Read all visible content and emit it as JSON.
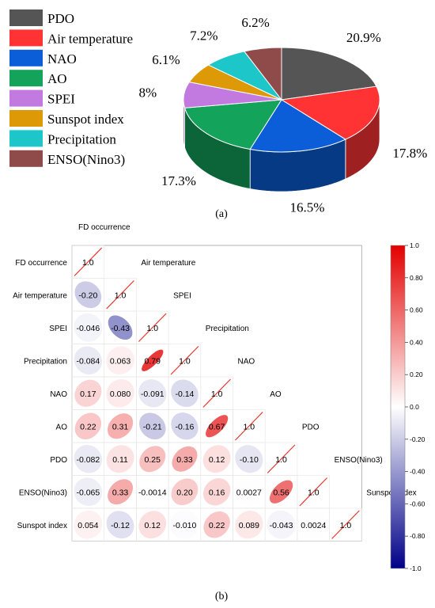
{
  "chart_data": [
    {
      "type": "pie",
      "panel_label": "(a)",
      "style": "3d-pie",
      "legend_placement": "left",
      "slices": [
        {
          "label": "PDO",
          "value": 20.9,
          "value_label": "20.9%",
          "color": "#555555"
        },
        {
          "label": "Air temperature",
          "value": 17.8,
          "value_label": "17.8%",
          "color": "#ff3333"
        },
        {
          "label": "NAO",
          "value": 16.5,
          "value_label": "16.5%",
          "color": "#0b5ed7"
        },
        {
          "label": "AO",
          "value": 17.3,
          "value_label": "17.3%",
          "color": "#14a35a"
        },
        {
          "label": "SPEI",
          "value": 8,
          "value_label": "8%",
          "color": "#c27ae0"
        },
        {
          "label": "Sunspot index",
          "value": 6.1,
          "value_label": "6.1%",
          "color": "#dd9a06"
        },
        {
          "label": "Precipitation",
          "value": 7.2,
          "value_label": "7.2%",
          "color": "#1cc6c9"
        },
        {
          "label": "ENSO(Nino3)",
          "value": 6.2,
          "value_label": "6.2%",
          "color": "#8f4a4a"
        }
      ]
    },
    {
      "type": "heatmap",
      "panel_label": "(b)",
      "style": "lower-triangle correlation matrix with ellipse glyphs",
      "variables": [
        "FD occurrence",
        "Air temperature",
        "SPEI",
        "Precipitation",
        "NAO",
        "AO",
        "PDO",
        "ENSO(Nino3)",
        "Sunspot index"
      ],
      "diagonal_label": "1.0",
      "matrix": [
        [
          "1.0"
        ],
        [
          "-0.20",
          "1.0"
        ],
        [
          "-0.046",
          "-0.43",
          "1.0"
        ],
        [
          "-0.084",
          "0.063",
          "0.79",
          "1.0"
        ],
        [
          "0.17",
          "0.080",
          "-0.091",
          "-0.14",
          "1.0"
        ],
        [
          "0.22",
          "0.31",
          "-0.21",
          "-0.16",
          "0.67",
          "1.0"
        ],
        [
          "-0.082",
          "0.11",
          "0.25",
          "0.33",
          "0.12",
          "-0.10",
          "1.0"
        ],
        [
          "-0.065",
          "0.33",
          "-0.0014",
          "0.20",
          "0.16",
          "0.0027",
          "0.56",
          "1.0"
        ],
        [
          "0.054",
          "-0.12",
          "0.12",
          "-0.010",
          "0.22",
          "0.089",
          "-0.043",
          "0.0024",
          "1.0"
        ]
      ],
      "colorbar": {
        "range": [
          -1,
          1
        ],
        "ticks": [
          "1.0",
          "0.80",
          "0.60",
          "0.40",
          "0.20",
          "0.0",
          "-0.20",
          "-0.40",
          "-0.60",
          "-0.80",
          "-1.0"
        ],
        "colors": {
          "negative": "#000088",
          "zero": "#ffffff",
          "positive": "#e30000"
        },
        "placement": "right"
      }
    }
  ]
}
